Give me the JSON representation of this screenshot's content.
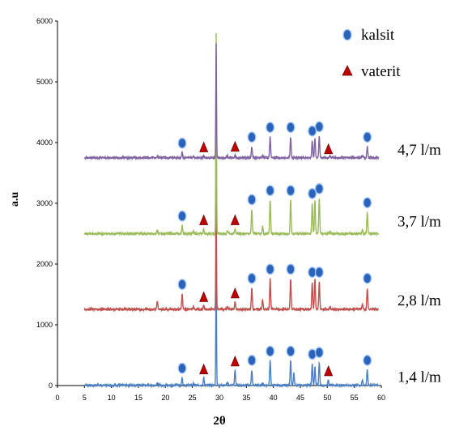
{
  "chart_data": {
    "type": "line",
    "xlabel": "2θ",
    "ylabel": "a.u",
    "xlim": [
      0,
      60
    ],
    "ylim": [
      0,
      6000
    ],
    "x_ticks": [
      "0",
      "5",
      "10",
      "15",
      "20",
      "25",
      "30",
      "35",
      "40",
      "45",
      "50",
      "55",
      "60"
    ],
    "y_ticks": [
      "0",
      "1000",
      "2000",
      "3000",
      "4000",
      "5000",
      "6000"
    ],
    "grid": false,
    "legend_position": "top-right",
    "legend": [
      {
        "label": "kalsit",
        "marker": "circle"
      },
      {
        "label": "vaterit",
        "marker": "triangle"
      }
    ],
    "colors": {
      "kalsit_marker": "#2a63b8",
      "vaterit_marker": "#c00000",
      "series": [
        "#4a7fc1",
        "#c0504d",
        "#9bbb59",
        "#8064a2"
      ]
    },
    "series": [
      {
        "name": "1,4 l/m",
        "color": "#4a7fc1",
        "baseline": 5,
        "peaks": [
          [
            18.5,
            30
          ],
          [
            23.1,
            120
          ],
          [
            25.2,
            30
          ],
          [
            27.1,
            120
          ],
          [
            29.4,
            2100
          ],
          [
            31.5,
            50
          ],
          [
            32.9,
            250
          ],
          [
            36.0,
            250
          ],
          [
            38.0,
            30
          ],
          [
            39.4,
            400
          ],
          [
            43.2,
            400
          ],
          [
            43.8,
            200
          ],
          [
            47.2,
            350
          ],
          [
            47.7,
            300
          ],
          [
            48.5,
            380
          ],
          [
            50.2,
            90
          ],
          [
            56.5,
            80
          ],
          [
            57.4,
            250
          ]
        ],
        "kalsit_markers": [
          23.1,
          36.0,
          39.4,
          43.2,
          47.2,
          48.5,
          57.4
        ],
        "vaterit_markers": [
          27.1,
          32.9,
          50.2
        ],
        "label_y": 140
      },
      {
        "name": "2,8 l/m",
        "color": "#c0504d",
        "baseline": 1255,
        "peaks": [
          [
            18.5,
            130
          ],
          [
            23.1,
            250
          ],
          [
            25.2,
            40
          ],
          [
            27.1,
            60
          ],
          [
            29.4,
            2000
          ],
          [
            31.5,
            40
          ],
          [
            32.9,
            120
          ],
          [
            36.0,
            350
          ],
          [
            38.0,
            150
          ],
          [
            39.4,
            500
          ],
          [
            43.2,
            500
          ],
          [
            47.2,
            450
          ],
          [
            47.7,
            500
          ],
          [
            48.5,
            450
          ],
          [
            50.5,
            40
          ],
          [
            56.5,
            90
          ],
          [
            57.4,
            350
          ]
        ],
        "kalsit_markers": [
          23.1,
          36.0,
          39.4,
          43.2,
          47.2,
          48.5,
          57.4
        ],
        "vaterit_markers": [
          27.1,
          32.9
        ],
        "label_y": 1400
      },
      {
        "name": "3,7 l/m",
        "color": "#9bbb59",
        "baseline": 2500,
        "peaks": [
          [
            18.5,
            60
          ],
          [
            23.1,
            130
          ],
          [
            25.2,
            40
          ],
          [
            27.1,
            80
          ],
          [
            29.4,
            3300
          ],
          [
            31.5,
            40
          ],
          [
            32.9,
            80
          ],
          [
            36.0,
            400
          ],
          [
            38.0,
            120
          ],
          [
            39.4,
            550
          ],
          [
            43.2,
            550
          ],
          [
            47.2,
            500
          ],
          [
            47.7,
            550
          ],
          [
            48.5,
            580
          ],
          [
            50.5,
            40
          ],
          [
            56.5,
            70
          ],
          [
            57.4,
            350
          ]
        ],
        "kalsit_markers": [
          23.1,
          36.0,
          39.4,
          43.2,
          47.2,
          48.5,
          57.4
        ],
        "vaterit_markers": [
          27.1,
          32.9
        ],
        "label_y": 2700
      },
      {
        "name": "4,7 l/m",
        "color": "#8064a2",
        "baseline": 3750,
        "peaks": [
          [
            18.5,
            30
          ],
          [
            23.1,
            80
          ],
          [
            25.2,
            30
          ],
          [
            27.1,
            30
          ],
          [
            29.4,
            1870
          ],
          [
            31.5,
            30
          ],
          [
            32.9,
            40
          ],
          [
            36.0,
            180
          ],
          [
            38.0,
            40
          ],
          [
            39.4,
            340
          ],
          [
            43.2,
            340
          ],
          [
            47.2,
            280
          ],
          [
            47.7,
            320
          ],
          [
            48.5,
            350
          ],
          [
            50.5,
            30
          ],
          [
            56.5,
            40
          ],
          [
            57.4,
            180
          ]
        ],
        "kalsit_markers": [
          23.1,
          36.0,
          39.4,
          43.2,
          47.2,
          48.5,
          57.4
        ],
        "vaterit_markers": [
          27.1,
          32.9,
          50.2
        ],
        "label_y": 3880
      }
    ]
  }
}
